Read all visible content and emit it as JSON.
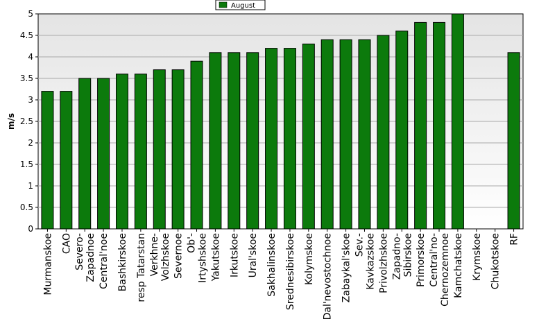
{
  "chart_data": {
    "type": "bar",
    "ylabel": "m/s",
    "ylim": [
      0,
      5
    ],
    "yticks": [
      0,
      0.5,
      1,
      1.5,
      2,
      2.5,
      3,
      3.5,
      4,
      4.5,
      5
    ],
    "grid": true,
    "legend_position": "top-center",
    "bar_color": "#0c7a0c",
    "plot_bg_top": "#e4e4e4",
    "plot_bg_bottom": "#ffffff",
    "categories": [
      "Murmanskoe",
      "CAO",
      "Severo-\nZapadnoe",
      "Central'noe",
      "Bashkirskoe",
      "resp Tatarstan",
      "Verkhne-\nVolzhskoe",
      "Severnoe",
      "Ob'-\nIrtyshskoe",
      "Yakutskoe",
      "Irkutskoe",
      "Ural'skoe",
      "Sakhalinskoe",
      "Srednesibirskoe",
      "Kolymskoe",
      "Dal'nevostochnoe",
      "Zabaykal'skoe",
      "Sev.-\nKavkazskoe",
      "Privolzhskoe",
      "Zapadno-\nSibirskoe",
      "Primorskoe",
      "Central'no-\nChernozemnoe",
      "Kamchatskoe",
      "Krymskoe",
      "Chukotskoe",
      "RF"
    ],
    "series": [
      {
        "name": "August",
        "values": [
          3.2,
          3.2,
          3.5,
          3.5,
          3.6,
          3.6,
          3.7,
          3.7,
          3.9,
          4.1,
          4.1,
          4.1,
          4.2,
          4.2,
          4.3,
          4.4,
          4.4,
          4.4,
          4.5,
          4.6,
          4.8,
          4.8,
          5.0,
          null,
          null,
          4.1
        ]
      }
    ]
  }
}
